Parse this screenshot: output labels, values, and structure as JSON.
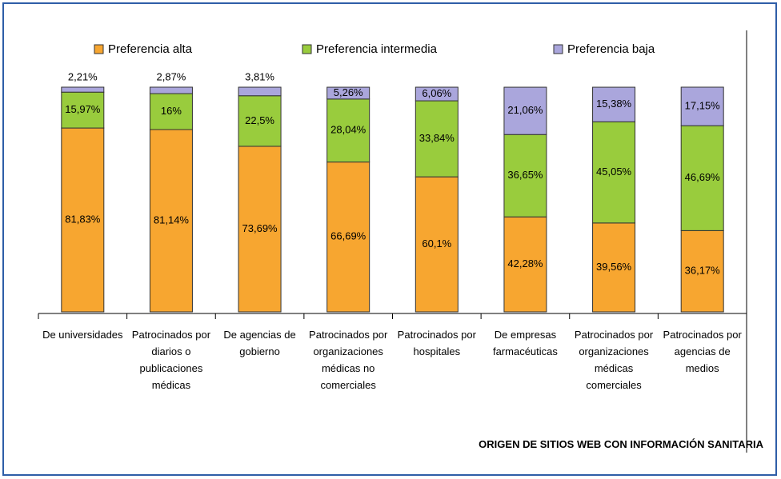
{
  "chart_data": {
    "type": "stacked_bar",
    "x_label": "ORIGEN DE SITIOS WEB CON INFORMACIÓN SANITARIA",
    "categories": [
      "De universidades",
      "Patrocinados por diarios o publicaciones médicas",
      "De agencias de gobierno",
      "Patrocinados por organizaciones médicas no comerciales",
      "Patrocinados por hospitales",
      "De empresas farmacéuticas",
      "Patrocinados por organizaciones médicas comerciales",
      "Patrocinados por agencias de medios"
    ],
    "series": [
      {
        "name": "Preferencia alta",
        "color": "#f7a630",
        "values": [
          81.83,
          81.14,
          73.69,
          66.69,
          60.1,
          42.28,
          39.56,
          36.17
        ],
        "value_labels": [
          "81,83%",
          "81,14%",
          "73,69%",
          "66,69%",
          "60,1%",
          "42,28%",
          "39,56%",
          "36,17%"
        ]
      },
      {
        "name": "Preferencia intermedia",
        "color": "#99cc3d",
        "values": [
          15.97,
          16,
          22.5,
          28.04,
          33.84,
          36.65,
          45.05,
          46.69
        ],
        "value_labels": [
          "15,97%",
          "16%",
          "22,5%",
          "28,04%",
          "33,84%",
          "36,65%",
          "45,05%",
          "46,69%"
        ]
      },
      {
        "name": "Preferencia baja",
        "color": "#aaa6dc",
        "values": [
          2.21,
          2.87,
          3.81,
          5.26,
          6.06,
          21.06,
          15.38,
          17.15
        ],
        "value_labels": [
          "2,21%",
          "2,87%",
          "3,81%",
          "5,26%",
          "6,06%",
          "21,06%",
          "15,38%",
          "17,15%"
        ]
      }
    ],
    "legend": "top"
  }
}
